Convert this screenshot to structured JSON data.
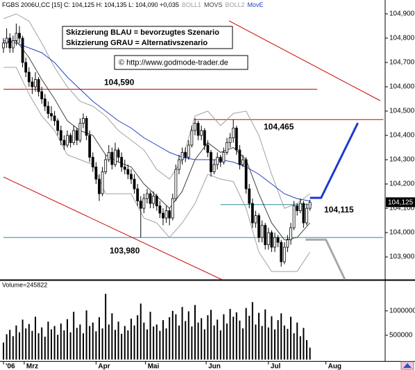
{
  "chart_data": {
    "type": "candlestick",
    "header": "FGBS 2006U,CC [15] C: 104,125 H: 104,135 L: 104,090 +0,035",
    "notes": [
      "Skizzierung BLAU = bevorzugtes Szenario",
      "Skizzierung GRAU = Alternativszenario"
    ],
    "source": "© http://www.godmode-trader.de",
    "xlim": [
      0,
      119
    ],
    "xticks": [
      {
        "value": 0,
        "label": "'06"
      },
      {
        "value": 6.5,
        "label": "Mrz"
      },
      {
        "value": 29,
        "label": "Apr"
      },
      {
        "value": 44.5,
        "label": "Mai"
      },
      {
        "value": 63.5,
        "label": "Jun"
      },
      {
        "value": 83,
        "label": "Jul"
      },
      {
        "value": 101,
        "label": "Aug"
      }
    ],
    "ylim": [
      103.806,
      104.957
    ],
    "yticks": [
      {
        "value": 103.9,
        "label": "103,900"
      },
      {
        "value": 104.0,
        "label": "104,000"
      },
      {
        "value": 104.1,
        "label": "104,100"
      },
      {
        "value": 104.2,
        "label": "104,200"
      },
      {
        "value": 104.3,
        "label": "104,300"
      },
      {
        "value": 104.4,
        "label": "104,400"
      },
      {
        "value": 104.5,
        "label": "104,500"
      },
      {
        "value": 104.6,
        "label": "104,600"
      },
      {
        "value": 104.7,
        "label": "104,700"
      },
      {
        "value": 104.8,
        "label": "104,800"
      },
      {
        "value": 104.9,
        "label": "104,900"
      }
    ],
    "ohlc": [
      [
        104.76,
        104.8,
        104.74,
        104.78
      ],
      [
        104.78,
        104.84,
        104.76,
        104.8
      ],
      [
        104.8,
        104.82,
        104.74,
        104.76
      ],
      [
        104.76,
        104.81,
        104.74,
        104.79
      ],
      [
        104.79,
        104.86,
        104.77,
        104.82
      ],
      [
        104.82,
        104.85,
        104.78,
        104.8
      ],
      [
        104.8,
        104.81,
        104.68,
        104.7
      ],
      [
        104.7,
        104.72,
        104.64,
        104.66
      ],
      [
        104.66,
        104.68,
        104.6,
        104.62
      ],
      [
        104.62,
        104.64,
        104.57,
        104.6
      ],
      [
        104.6,
        104.66,
        104.58,
        104.63
      ],
      [
        104.63,
        104.64,
        104.56,
        104.58
      ],
      [
        104.58,
        104.6,
        104.53,
        104.55
      ],
      [
        104.55,
        104.57,
        104.5,
        104.52
      ],
      [
        104.52,
        104.54,
        104.47,
        104.49
      ],
      [
        104.49,
        104.52,
        104.46,
        104.48
      ],
      [
        104.48,
        104.5,
        104.44,
        104.46
      ],
      [
        104.46,
        104.47,
        104.4,
        104.42
      ],
      [
        104.42,
        104.44,
        104.36,
        104.38
      ],
      [
        104.38,
        104.4,
        104.34,
        104.36
      ],
      [
        104.36,
        104.42,
        104.35,
        104.4
      ],
      [
        104.4,
        104.41,
        104.35,
        104.37
      ],
      [
        104.37,
        104.44,
        104.36,
        104.42
      ],
      [
        104.42,
        104.43,
        104.36,
        104.38
      ],
      [
        104.38,
        104.47,
        104.37,
        104.45
      ],
      [
        104.45,
        104.49,
        104.43,
        104.47
      ],
      [
        104.47,
        104.48,
        104.38,
        104.4
      ],
      [
        104.4,
        104.42,
        104.29,
        104.31
      ],
      [
        104.31,
        104.33,
        104.25,
        104.27
      ],
      [
        104.27,
        104.29,
        104.2,
        104.22
      ],
      [
        104.22,
        104.24,
        104.13,
        104.16
      ],
      [
        104.16,
        104.27,
        104.15,
        104.25
      ],
      [
        104.25,
        104.32,
        104.24,
        104.3
      ],
      [
        104.3,
        104.36,
        104.29,
        104.33
      ],
      [
        104.33,
        104.35,
        104.26,
        104.28
      ],
      [
        104.28,
        104.37,
        104.27,
        104.34
      ],
      [
        104.34,
        104.35,
        104.29,
        104.31
      ],
      [
        104.31,
        104.33,
        104.25,
        104.27
      ],
      [
        104.27,
        104.3,
        104.24,
        104.26
      ],
      [
        104.26,
        104.28,
        104.22,
        104.24
      ],
      [
        104.24,
        104.26,
        104.2,
        104.22
      ],
      [
        104.22,
        104.24,
        104.16,
        104.18
      ],
      [
        104.18,
        104.2,
        104.11,
        104.13
      ],
      [
        104.13,
        104.15,
        103.98,
        104.1
      ],
      [
        104.1,
        104.16,
        104.08,
        104.14
      ],
      [
        104.14,
        104.18,
        104.12,
        104.16
      ],
      [
        104.16,
        104.17,
        104.1,
        104.12
      ],
      [
        104.12,
        104.17,
        104.1,
        104.15
      ],
      [
        104.15,
        104.16,
        104.09,
        104.11
      ],
      [
        104.11,
        104.13,
        104.06,
        104.08
      ],
      [
        104.08,
        104.1,
        104.03,
        104.06
      ],
      [
        104.06,
        104.11,
        104.04,
        104.09
      ],
      [
        104.09,
        104.1,
        104.03,
        104.06
      ],
      [
        104.06,
        104.16,
        104.05,
        104.14
      ],
      [
        104.14,
        104.28,
        104.13,
        104.26
      ],
      [
        104.26,
        104.32,
        104.24,
        104.3
      ],
      [
        104.3,
        104.35,
        104.28,
        104.33
      ],
      [
        104.33,
        104.35,
        104.29,
        104.31
      ],
      [
        104.31,
        104.38,
        104.3,
        104.36
      ],
      [
        104.36,
        104.44,
        104.35,
        104.42
      ],
      [
        104.42,
        104.47,
        104.4,
        104.45
      ],
      [
        104.45,
        104.46,
        104.38,
        104.4
      ],
      [
        104.4,
        104.44,
        104.38,
        104.42
      ],
      [
        104.42,
        104.43,
        104.34,
        104.36
      ],
      [
        104.36,
        104.38,
        104.31,
        104.33
      ],
      [
        104.33,
        104.34,
        104.23,
        104.25
      ],
      [
        104.25,
        104.3,
        104.24,
        104.28
      ],
      [
        104.28,
        104.33,
        104.26,
        104.31
      ],
      [
        104.31,
        104.32,
        104.27,
        104.29
      ],
      [
        104.29,
        104.35,
        104.28,
        104.33
      ],
      [
        104.33,
        104.39,
        104.32,
        104.37
      ],
      [
        104.37,
        104.41,
        104.35,
        104.39
      ],
      [
        104.39,
        104.465,
        104.37,
        104.43
      ],
      [
        104.43,
        104.44,
        104.32,
        104.34
      ],
      [
        104.34,
        104.36,
        104.26,
        104.28
      ],
      [
        104.28,
        104.32,
        104.27,
        104.3
      ],
      [
        104.3,
        104.31,
        104.16,
        104.18
      ],
      [
        104.18,
        104.2,
        104.1,
        104.12
      ],
      [
        104.12,
        104.14,
        104.02,
        104.04
      ],
      [
        104.04,
        104.09,
        104.02,
        104.07
      ],
      [
        104.07,
        104.08,
        103.96,
        103.98
      ],
      [
        103.98,
        104.05,
        103.96,
        104.03
      ],
      [
        104.03,
        104.04,
        103.93,
        103.95
      ],
      [
        103.95,
        104.02,
        103.93,
        104.0
      ],
      [
        104.0,
        104.01,
        103.92,
        103.94
      ],
      [
        103.94,
        104.0,
        103.92,
        103.98
      ],
      [
        103.98,
        103.99,
        103.94,
        103.96
      ],
      [
        103.96,
        103.97,
        103.86,
        103.88
      ],
      [
        103.88,
        103.96,
        103.87,
        103.94
      ],
      [
        103.94,
        103.99,
        103.92,
        103.97
      ],
      [
        103.97,
        104.04,
        103.95,
        104.02
      ],
      [
        104.02,
        104.13,
        104.01,
        104.11
      ],
      [
        104.11,
        104.12,
        104.07,
        104.09
      ],
      [
        104.09,
        104.14,
        104.08,
        104.12
      ],
      [
        104.12,
        104.13,
        104.02,
        104.04
      ],
      [
        104.04,
        104.12,
        104.03,
        104.1
      ],
      [
        104.1,
        104.135,
        104.09,
        104.125
      ]
    ],
    "x": [
      0,
      4,
      8,
      12,
      16,
      20,
      24,
      28,
      32,
      36,
      40,
      44,
      48,
      52,
      56,
      60,
      64,
      68,
      72,
      76,
      80,
      84,
      88,
      92,
      96
    ],
    "series": [
      {
        "name": "BOLL1",
        "color": "#a0a0a0",
        "values": [
          104.88,
          104.9,
          104.87,
          104.78,
          104.68,
          104.6,
          104.54,
          104.52,
          104.48,
          104.42,
          104.38,
          104.34,
          104.26,
          104.22,
          104.3,
          104.48,
          104.5,
          104.44,
          104.49,
          104.5,
          104.4,
          104.24,
          104.1,
          104.12,
          104.16
        ]
      },
      {
        "name": "MOVS",
        "color": "#404040",
        "values": [
          104.78,
          104.79,
          104.72,
          104.63,
          104.55,
          104.46,
          104.42,
          104.4,
          104.32,
          104.29,
          104.27,
          104.2,
          104.15,
          104.1,
          104.17,
          104.3,
          104.37,
          104.33,
          104.35,
          104.3,
          104.16,
          104.04,
          103.97,
          103.98,
          104.04
        ]
      },
      {
        "name": "BOLL2",
        "color": "#a0a0a0",
        "values": [
          104.68,
          104.68,
          104.57,
          104.48,
          104.42,
          104.32,
          104.3,
          104.28,
          104.16,
          104.16,
          104.16,
          104.06,
          104.04,
          103.98,
          104.04,
          104.12,
          104.24,
          104.22,
          104.21,
          104.1,
          103.92,
          103.84,
          103.84,
          103.84,
          103.92
        ]
      },
      {
        "name": "MovE",
        "color": "#2040c0",
        "values": [
          104.79,
          104.78,
          104.76,
          104.74,
          104.7,
          104.64,
          104.59,
          104.54,
          104.5,
          104.46,
          104.43,
          104.39,
          104.36,
          104.33,
          104.31,
          104.3,
          104.3,
          104.3,
          104.29,
          104.27,
          104.24,
          104.2,
          104.16,
          104.14,
          104.13
        ]
      }
    ],
    "levels": [
      {
        "value": 104.59,
        "label": "104,590",
        "color": "#cc0000",
        "x": [
          0,
          98.3
        ]
      },
      {
        "value": 104.465,
        "label": "104,465",
        "color": "#cc0000",
        "x": [
          59.8,
          119
        ]
      },
      {
        "value": 104.115,
        "label": "104,115",
        "color": "#2a8a9a",
        "x": [
          68,
          96.7
        ]
      },
      {
        "value": 103.98,
        "label": "103,980",
        "color": "#2a8a9a",
        "x": [
          0,
          119
        ]
      }
    ],
    "trendlines": [
      {
        "color": "#cc0000",
        "x": [
          70.7,
          118
        ],
        "values": [
          104.871,
          104.543
        ]
      },
      {
        "color": "#cc0000",
        "x": [
          0,
          68.5
        ],
        "values": [
          104.229,
          103.806
        ]
      }
    ],
    "scenarios": [
      {
        "color": "#1a3ad0",
        "x": [
          96,
          99.5,
          111
        ],
        "values": [
          104.143,
          104.143,
          104.451
        ]
      },
      {
        "color": "#a8a8a8",
        "x": [
          94.6,
          101,
          107
        ],
        "values": [
          103.971,
          103.971,
          103.806
        ]
      }
    ],
    "last_price": {
      "value": 104.125,
      "label": "104,125"
    },
    "volume": {
      "type": "bar",
      "label": "Volume=245822",
      "color": "#000000",
      "ylim": [
        0,
        1610000
      ],
      "yticks": [
        500000,
        1000000
      ],
      "values": [
        350000,
        520000,
        610000,
        480000,
        700000,
        560000,
        820000,
        640000,
        730000,
        590000,
        880000,
        540000,
        660000,
        470000,
        780000,
        620000,
        690000,
        510000,
        740000,
        600000,
        830000,
        560000,
        980000,
        650000,
        720000,
        540000,
        1010000,
        690000,
        760000,
        580000,
        870000,
        640000,
        1350000,
        720000,
        950000,
        610000,
        780000,
        530000,
        690000,
        600000,
        840000,
        700000,
        910000,
        1150000,
        760000,
        620000,
        980000,
        680000,
        720000,
        590000,
        810000,
        640000,
        870000,
        1000000,
        930000,
        700000,
        1080000,
        790000,
        990000,
        680000,
        1120000,
        760000,
        850000,
        620000,
        910000,
        1020000,
        700000,
        820000,
        600000,
        930000,
        740000,
        1040000,
        880000,
        970000,
        800000,
        640000,
        1060000,
        900000,
        1180000,
        720000,
        960000,
        690000,
        1030000,
        660000,
        890000,
        620000,
        810000,
        950000,
        700000,
        630000,
        880000,
        540000,
        760000,
        480000,
        650000,
        400000,
        245822
      ]
    }
  }
}
